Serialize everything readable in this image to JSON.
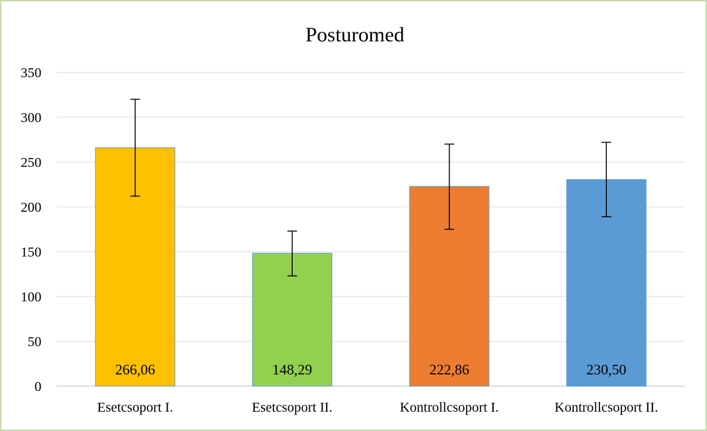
{
  "chart_data": {
    "type": "bar",
    "title": "Posturomed",
    "xlabel": "",
    "ylabel": "",
    "ylim": [
      0,
      350
    ],
    "yticks": [
      0,
      50,
      100,
      150,
      200,
      250,
      300,
      350
    ],
    "grid": true,
    "legend": "none",
    "categories": [
      "Esetcsoport I.",
      "Esetcsoport II.",
      "Kontrollcsoport I.",
      "Kontrollcsoport II."
    ],
    "values": [
      266.06,
      148.29,
      222.86,
      230.5
    ],
    "data_labels": [
      "266,06",
      "148,29",
      "222,86",
      "230,50"
    ],
    "error_bars": [
      {
        "low": 212,
        "high": 320
      },
      {
        "low": 123,
        "high": 173
      },
      {
        "low": 175,
        "high": 270
      },
      {
        "low": 189,
        "high": 272
      }
    ],
    "colors": [
      "#ffc000",
      "#92d050",
      "#ed7d31",
      "#5b9bd5"
    ]
  }
}
